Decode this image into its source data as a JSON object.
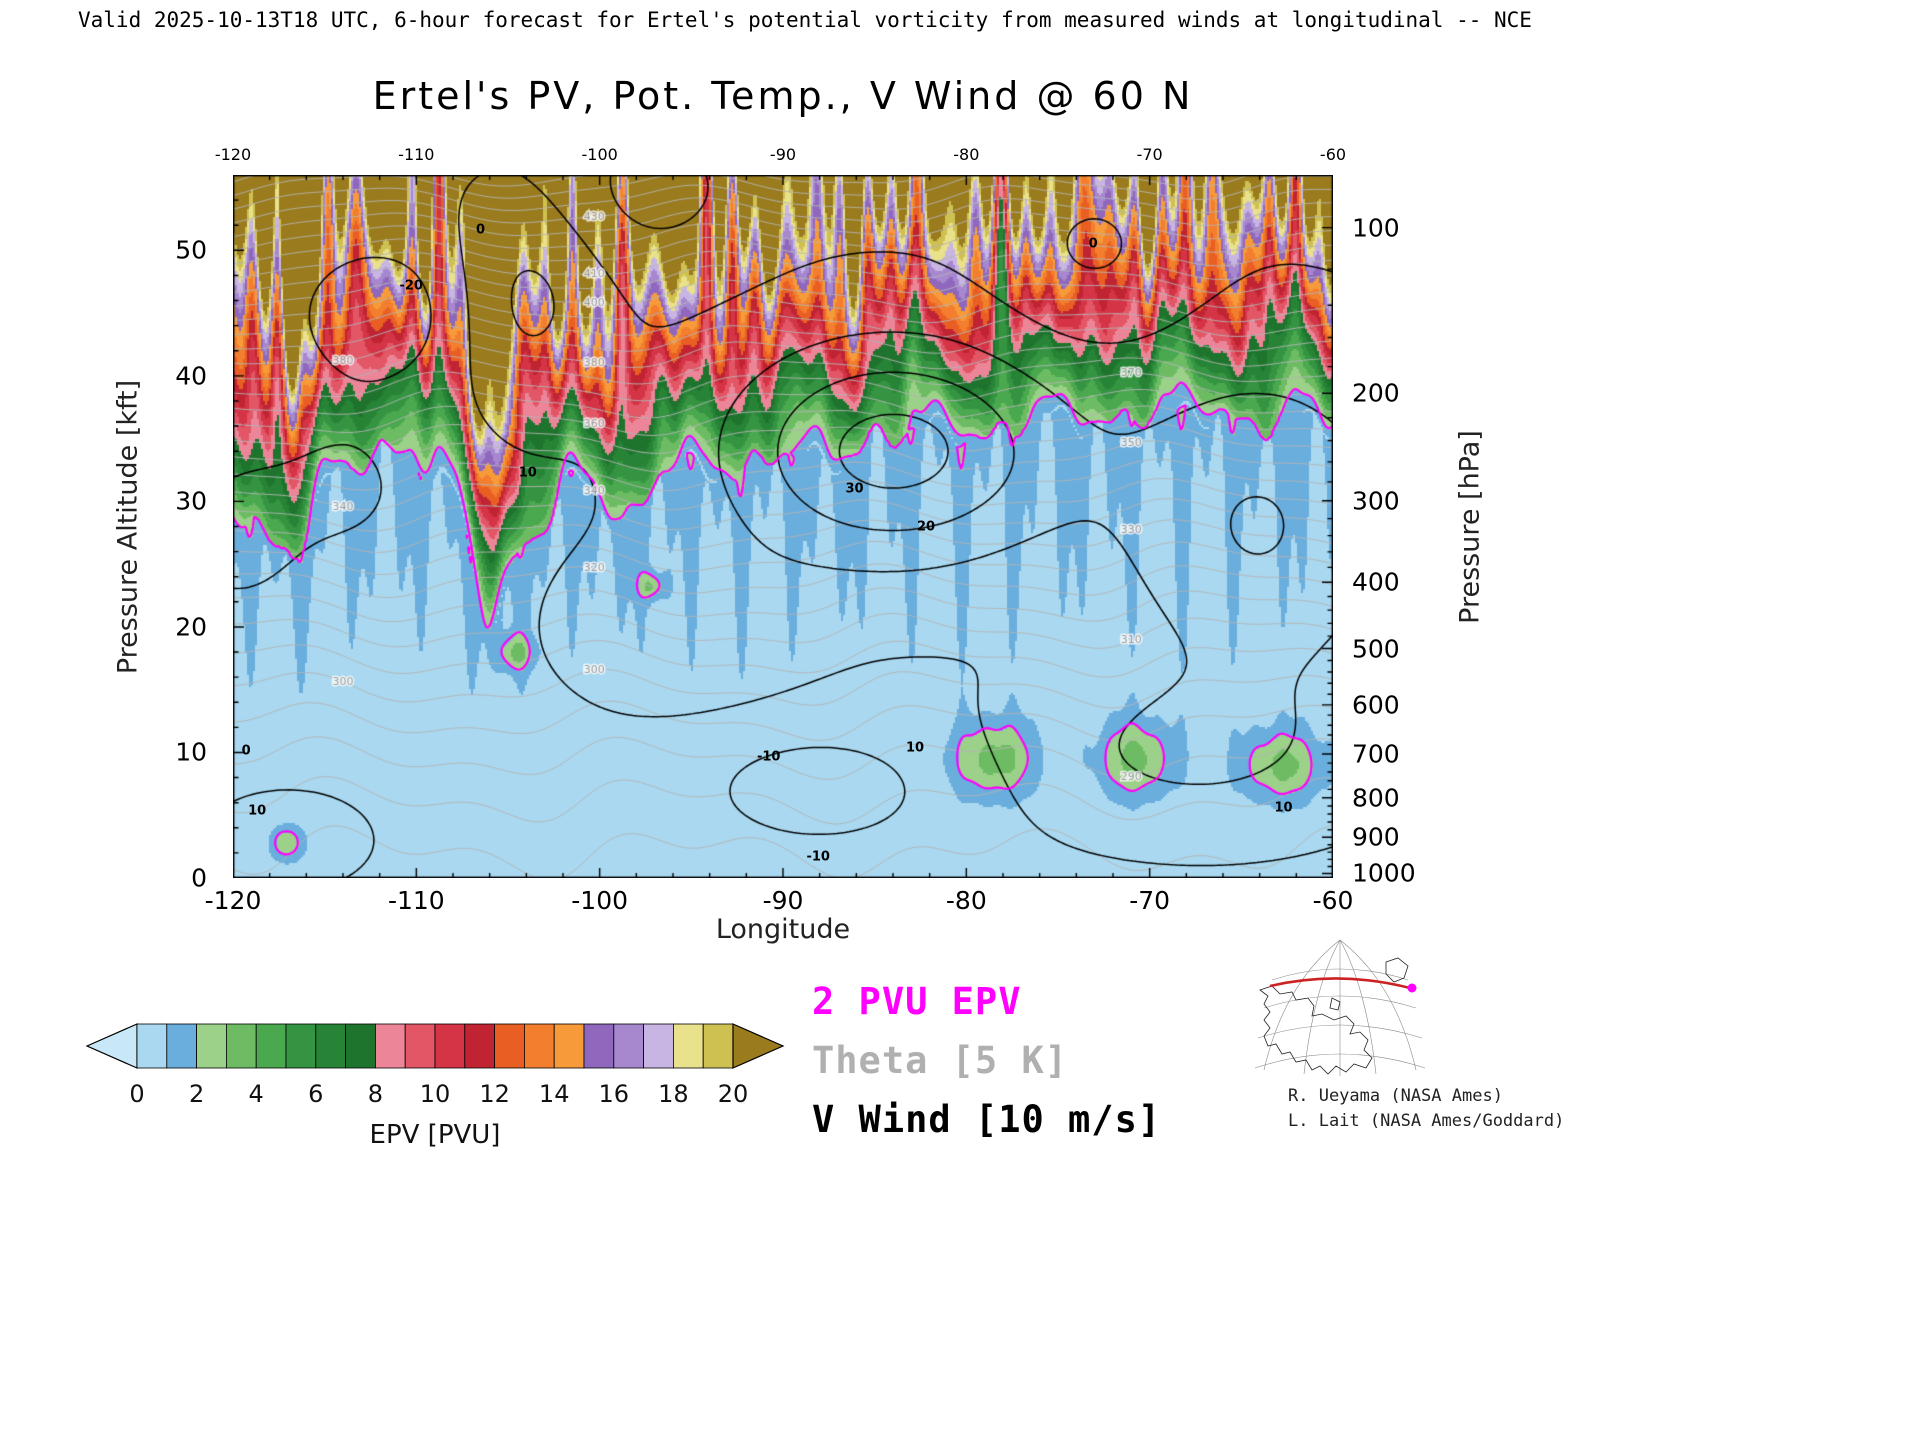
{
  "header": {
    "validity_line": "Valid 2025-10-13T18 UTC, 6-hour forecast for Ertel's potential vorticity from measured winds at longitudinal -- NCE"
  },
  "title": "Ertel's PV, Pot. Temp., V Wind @ 60 N",
  "axes": {
    "x": {
      "label": "Longitude",
      "ticks": [
        -120,
        -110,
        -100,
        -90,
        -80,
        -70,
        -60
      ],
      "range": [
        -120,
        -60
      ],
      "minor_step_deg": 2
    },
    "y_left": {
      "label": "Pressure Altitude [kft]",
      "ticks": [
        0,
        10,
        20,
        30,
        40,
        50
      ],
      "range": [
        0,
        56
      ],
      "minor_step_kft": 2
    },
    "y_right": {
      "label": "Pressure [hPa]",
      "ticks": [
        100,
        200,
        300,
        400,
        500,
        600,
        700,
        800,
        900,
        1000
      ]
    }
  },
  "colorbar": {
    "label": "EPV [PVU]",
    "tick_labels": [
      "0",
      "2",
      "4",
      "6",
      "8",
      "10",
      "12",
      "14",
      "16",
      "18",
      "20"
    ]
  },
  "legend": {
    "items": [
      {
        "label": "2 PVU EPV",
        "color": "#ff00ff"
      },
      {
        "label": "Theta [5 K]",
        "color": "#b0b0b0"
      },
      {
        "label": "V Wind [10 m/s]",
        "color": "#000000"
      }
    ]
  },
  "credits": {
    "line1": "R. Ueyama (NASA Ames)",
    "line2": "L. Lait (NASA Ames/Goddard)"
  },
  "annotations": {
    "wind_labels": [
      {
        "text": "0",
        "fx": 0.225,
        "fy": 0.078
      },
      {
        "text": "-20",
        "fx": 0.162,
        "fy": 0.158
      },
      {
        "text": "0",
        "fx": 0.782,
        "fy": 0.098
      },
      {
        "text": "10",
        "fx": 0.268,
        "fy": 0.424
      },
      {
        "text": "30",
        "fx": 0.565,
        "fy": 0.446
      },
      {
        "text": "-10",
        "fx": 0.487,
        "fy": 0.828
      },
      {
        "text": "10",
        "fx": 0.62,
        "fy": 0.815
      },
      {
        "text": "0",
        "fx": 0.012,
        "fy": 0.82
      },
      {
        "text": "10",
        "fx": 0.022,
        "fy": 0.905
      },
      {
        "text": "-10",
        "fx": 0.532,
        "fy": 0.97
      },
      {
        "text": "20",
        "fx": 0.63,
        "fy": 0.5
      },
      {
        "text": "10",
        "fx": 0.955,
        "fy": 0.9
      }
    ],
    "theta_labels": {
      "columns": [
        {
          "lon": -100.3,
          "levels": [
            300,
            320,
            340,
            360,
            380,
            400,
            410,
            430
          ]
        },
        {
          "lon": -71,
          "levels": [
            290,
            310,
            330,
            350,
            370
          ]
        },
        {
          "lon": -114,
          "levels": [
            300,
            340,
            380
          ]
        }
      ]
    }
  },
  "chart_data": {
    "type": "heatmap",
    "title": "Ertel's PV, Pot. Temp., V Wind @ 60 N",
    "xlabel": "Longitude",
    "x_range_deg": [
      -120,
      -60
    ],
    "ylabel_left": "Pressure Altitude [kft]",
    "y_range_kft": [
      0,
      56
    ],
    "ylabel_right": "Pressure [hPa]",
    "pressure_ticks_hPa": [
      100,
      200,
      300,
      400,
      500,
      600,
      700,
      800,
      900,
      1000
    ],
    "fill_variable": "EPV [PVU]",
    "fill_levels_PVU": {
      "min": 0,
      "max": 20,
      "step": 1
    },
    "palette_PVU": {
      "under": "#c9e8f7",
      "bins": [
        "#a9d8f0",
        "#6aaede",
        "#9bd189",
        "#6dbc63",
        "#4aa84f",
        "#349441",
        "#278436",
        "#1e742d",
        "#ec8598",
        "#e25666",
        "#d43445",
        "#c02433",
        "#e95f23",
        "#f27e2e",
        "#f79a3a",
        "#8f68bd",
        "#a788cf",
        "#c8b5e4",
        "#e9e18c",
        "#cfc052"
      ],
      "over": "#9a7b1d"
    },
    "overlays": [
      {
        "name": "2 PVU EPV",
        "type": "contour",
        "level": 2,
        "color": "#ff00ff"
      },
      {
        "name": "Theta",
        "type": "contour",
        "interval": 5,
        "units": "K",
        "color": "#b4b4b4",
        "surface_value_K": 278,
        "lapse_K_per_kft": 0.9,
        "curvature_K_per_kft2": 0.037
      },
      {
        "name": "V Wind",
        "type": "contour",
        "interval": 10,
        "units": "m/s",
        "color": "#000000",
        "negative_style": "dashed"
      }
    ],
    "tropopause_2pvu": {
      "longitude_deg": [
        -120,
        -117,
        -114,
        -111,
        -108,
        -106,
        -104,
        -101,
        -99,
        -96,
        -93,
        -90,
        -87,
        -85,
        -82,
        -79,
        -76,
        -73,
        -70,
        -67,
        -64,
        -62,
        -60
      ],
      "altitude_kft": [
        29,
        26,
        33,
        34,
        31,
        20,
        27,
        32,
        28,
        33,
        32,
        34,
        33,
        35,
        36,
        35,
        37,
        36,
        37,
        37,
        36,
        37,
        36
      ]
    },
    "low_level_pv_maxima": [
      {
        "lon": -117.1,
        "alt_kft": 2.8,
        "peak": 2.6,
        "sx": 0.9,
        "sz": 1.4
      },
      {
        "lon": -104.6,
        "alt_kft": 18.0,
        "peak": 2.6,
        "sx": 0.9,
        "sz": 1.4
      },
      {
        "lon": -97.2,
        "alt_kft": 23.3,
        "peak": 2.5,
        "sx": 0.7,
        "sz": 1.1
      },
      {
        "lon": -78.5,
        "alt_kft": 9.5,
        "peak": 3.1,
        "sx": 2.2,
        "sz": 3.0
      },
      {
        "lon": -70.8,
        "alt_kft": 9.5,
        "peak": 3.0,
        "sx": 2.0,
        "sz": 3.0
      },
      {
        "lon": -62.8,
        "alt_kft": 9.0,
        "peak": 2.9,
        "sx": 2.2,
        "sz": 2.8
      }
    ],
    "v_wind_centers": [
      {
        "lon": -84,
        "alt_kft": 34,
        "amp": 35,
        "sx": 9,
        "sz": 9
      },
      {
        "lon": -64,
        "alt_kft": 28,
        "amp": 22,
        "sx": 8,
        "sz": 13
      },
      {
        "lon": -114,
        "alt_kft": 31,
        "amp": -10,
        "sx": 5,
        "sz": 7
      },
      {
        "lon": -120,
        "alt_kft": 27,
        "amp": -12,
        "sx": 3.5,
        "sz": 6
      },
      {
        "lon": -112,
        "alt_kft": 45,
        "amp": -15,
        "sx": 5,
        "sz": 6
      },
      {
        "lon": -88,
        "alt_kft": 7,
        "amp": -14,
        "sx": 7,
        "sz": 5
      },
      {
        "lon": -104,
        "alt_kft": 46,
        "amp": 14,
        "sx": 4,
        "sz": 8
      },
      {
        "lon": -97,
        "alt_kft": 55,
        "amp": -12,
        "sx": 5,
        "sz": 6
      },
      {
        "lon": -117,
        "alt_kft": 3,
        "amp": 9,
        "sx": 3.5,
        "sz": 3
      },
      {
        "lon": -73,
        "alt_kft": 50,
        "amp": -10,
        "sx": 5,
        "sz": 7
      },
      {
        "lon": -68,
        "alt_kft": 10,
        "amp": 12,
        "sx": 9,
        "sz": 6
      },
      {
        "lon": -95,
        "alt_kft": 20,
        "amp": 10,
        "sx": 6,
        "sz": 6
      }
    ],
    "v_wind_background": -1.5,
    "wind_levels": [
      -30,
      -20,
      -10,
      0,
      10,
      20,
      30
    ]
  }
}
